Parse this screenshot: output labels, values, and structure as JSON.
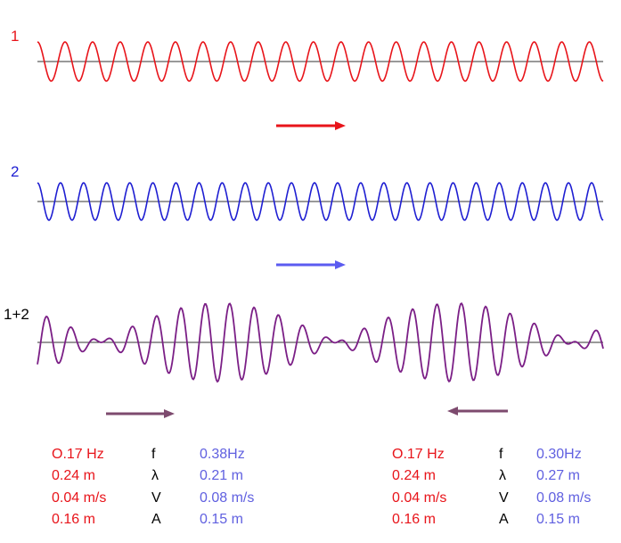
{
  "waves": [
    {
      "label": "1",
      "color": "#e8141a",
      "direction": "right",
      "cycles": 20.5
    },
    {
      "label": "2",
      "color": "#1e1ed2",
      "direction": "right",
      "cycles": 24.5
    },
    {
      "label": "1+2",
      "color": "#7b1f86",
      "label_color": "#000000",
      "direction": "both"
    }
  ],
  "arrow_colors": {
    "wave1": "#e8141a",
    "wave2": "#5b5bf0",
    "sum": "#7d4a6e"
  },
  "param_colors": {
    "left": "#e8141a",
    "symbol": "#000000",
    "right": "#6060e0"
  },
  "params": [
    {
      "rows": [
        {
          "left": "O.17 Hz",
          "symbol": "f",
          "right": "0.38Hz"
        },
        {
          "left": "0.24  m",
          "symbol": "λ",
          "right": "0.21 m"
        },
        {
          "left": "0.04 m/s",
          "symbol": "V",
          "right": "0.08 m/s"
        },
        {
          "left": "0.16 m",
          "symbol": "A",
          "right": "0.15 m"
        }
      ]
    },
    {
      "rows": [
        {
          "left": "O.17 Hz",
          "symbol": "f",
          "right": "0.30Hz"
        },
        {
          "left": "0.24  m",
          "symbol": "λ",
          "right": "0.27 m"
        },
        {
          "left": "0.04 m/s",
          "symbol": "V",
          "right": "0.08 m/s"
        },
        {
          "left": "0.16 m",
          "symbol": "A",
          "right": "0.15 m"
        }
      ]
    }
  ]
}
